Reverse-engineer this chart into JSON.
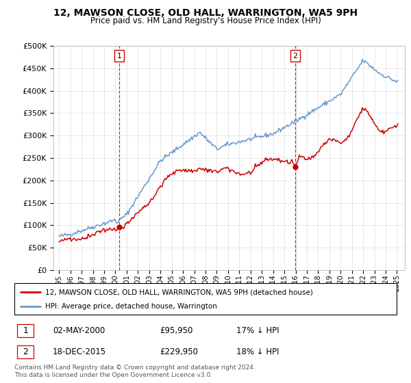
{
  "title": "12, MAWSON CLOSE, OLD HALL, WARRINGTON, WA5 9PH",
  "subtitle": "Price paid vs. HM Land Registry's House Price Index (HPI)",
  "legend_line1": "12, MAWSON CLOSE, OLD HALL, WARRINGTON, WA5 9PH (detached house)",
  "legend_line2": "HPI: Average price, detached house, Warrington",
  "sale1_date": "02-MAY-2000",
  "sale1_price": "£95,950",
  "sale1_hpi": "17% ↓ HPI",
  "sale2_date": "18-DEC-2015",
  "sale2_price": "£229,950",
  "sale2_hpi": "18% ↓ HPI",
  "footer": "Contains HM Land Registry data © Crown copyright and database right 2024.\nThis data is licensed under the Open Government Licence v3.0.",
  "hpi_color": "#6699cc",
  "price_color": "#cc0000",
  "dashed_color": "#cc0000",
  "ylim": [
    0,
    500000
  ],
  "yticks": [
    0,
    50000,
    100000,
    150000,
    200000,
    250000,
    300000,
    350000,
    400000,
    450000,
    500000
  ],
  "sale1_year": 2000.33,
  "sale2_year": 2015.96,
  "sale1_price_val": 95950,
  "sale2_price_val": 229950
}
